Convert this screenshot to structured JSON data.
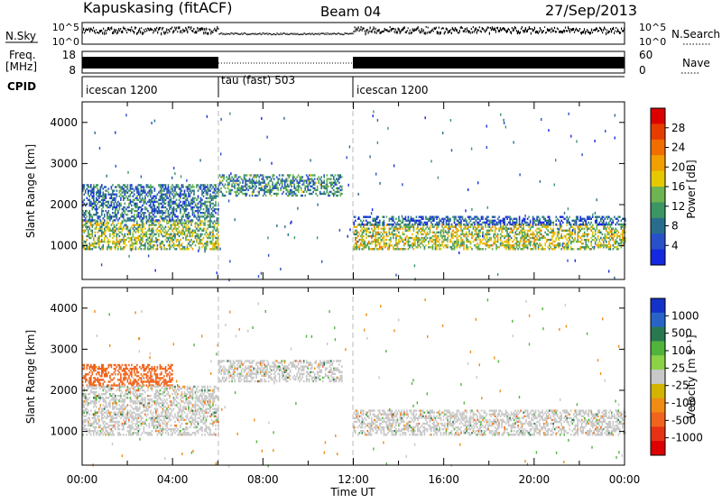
{
  "header": {
    "station": "Kapuskasing (fitACF)",
    "beam": "Beam 04",
    "date": "27/Sep/2013"
  },
  "strips": {
    "nsky_label": "N.Sky",
    "nsky_ticks": [
      "10^5",
      "10^0"
    ],
    "nsearch_label": "N.Search",
    "nsearch_ticks": [
      "10^5",
      "10^0"
    ],
    "freq_label_line1": "Freq.",
    "freq_label_line2": "[MHz]",
    "freq_ticks": [
      "18",
      "8"
    ],
    "nave_label": "Nave",
    "nave_ticks": [
      "60",
      "0"
    ],
    "cpid_label": "CPID",
    "cpid_segments": [
      {
        "label": "icescan 1200",
        "start_hour": 0,
        "end_hour": 6
      },
      {
        "label": "tau (fast) 503",
        "start_hour": 6,
        "end_hour": 12
      },
      {
        "label": "icescan 1200",
        "start_hour": 12,
        "end_hour": 24
      }
    ]
  },
  "colors": {
    "power_scale": [
      "#1428e0",
      "#2850c8",
      "#286e8c",
      "#3c9664",
      "#6eb450",
      "#e6c800",
      "#f0a000",
      "#f06e00",
      "#e63c00",
      "#dc0000"
    ],
    "velocity_scale": [
      "#1432c8",
      "#2864c8",
      "#287850",
      "#50b43c",
      "#8cd246",
      "#c8c8c8",
      "#d2b400",
      "#f08c14",
      "#f0641e",
      "#e63214",
      "#dc0000"
    ]
  },
  "chart_data": [
    {
      "type": "heatmap",
      "name": "power",
      "ylabel": "Slant Range [km]",
      "xlabel": "",
      "xlim": [
        0,
        24
      ],
      "ylim": [
        180,
        4500
      ],
      "yticks": [
        1000,
        2000,
        3000,
        4000
      ],
      "colorbar": {
        "label": "Power [dB]",
        "range": [
          0,
          32
        ],
        "ticks": [
          "4",
          "8",
          "12",
          "16",
          "20",
          "24",
          "28"
        ]
      },
      "regions": [
        {
          "start_hour": 0.0,
          "end_hour": 6.0,
          "range_low_km": 900,
          "range_high_km": 1600,
          "value_db": 14
        },
        {
          "start_hour": 0.0,
          "end_hour": 6.0,
          "range_low_km": 1600,
          "range_high_km": 2500,
          "value_db": 8
        },
        {
          "start_hour": 6.0,
          "end_hour": 11.5,
          "range_low_km": 2200,
          "range_high_km": 2700,
          "value_db": 10
        },
        {
          "start_hour": 12.0,
          "end_hour": 24.0,
          "range_low_km": 900,
          "range_high_km": 1500,
          "value_db": 16
        },
        {
          "start_hour": 12.0,
          "end_hour": 24.0,
          "range_low_km": 1500,
          "range_high_km": 1700,
          "value_db": 6
        }
      ]
    },
    {
      "type": "heatmap",
      "name": "velocity",
      "ylabel": "Slant Range [km]",
      "xlabel": "Time UT",
      "xlim": [
        0,
        24
      ],
      "ylim": [
        180,
        4500
      ],
      "xticks": [
        "00:00",
        "04:00",
        "08:00",
        "12:00",
        "16:00",
        "20:00",
        "00:00"
      ],
      "yticks": [
        1000,
        2000,
        3000,
        4000
      ],
      "colorbar": {
        "label": "Velocity [m s⁻¹]",
        "ticks": [
          "1000",
          "500",
          "100",
          "25",
          "-25",
          "-100",
          "-500",
          "-1000"
        ]
      },
      "regions": [
        {
          "start_hour": 0.0,
          "end_hour": 4.0,
          "range_low_km": 2100,
          "range_high_km": 2600,
          "value_ms": -150
        },
        {
          "start_hour": 0.0,
          "end_hour": 6.0,
          "range_low_km": 900,
          "range_high_km": 2100,
          "value_ms": 0
        },
        {
          "start_hour": 6.0,
          "end_hour": 11.5,
          "range_low_km": 2200,
          "range_high_km": 2700,
          "value_ms": 0
        },
        {
          "start_hour": 12.0,
          "end_hour": 24.0,
          "range_low_km": 900,
          "range_high_km": 1500,
          "value_ms": 0
        }
      ]
    }
  ]
}
